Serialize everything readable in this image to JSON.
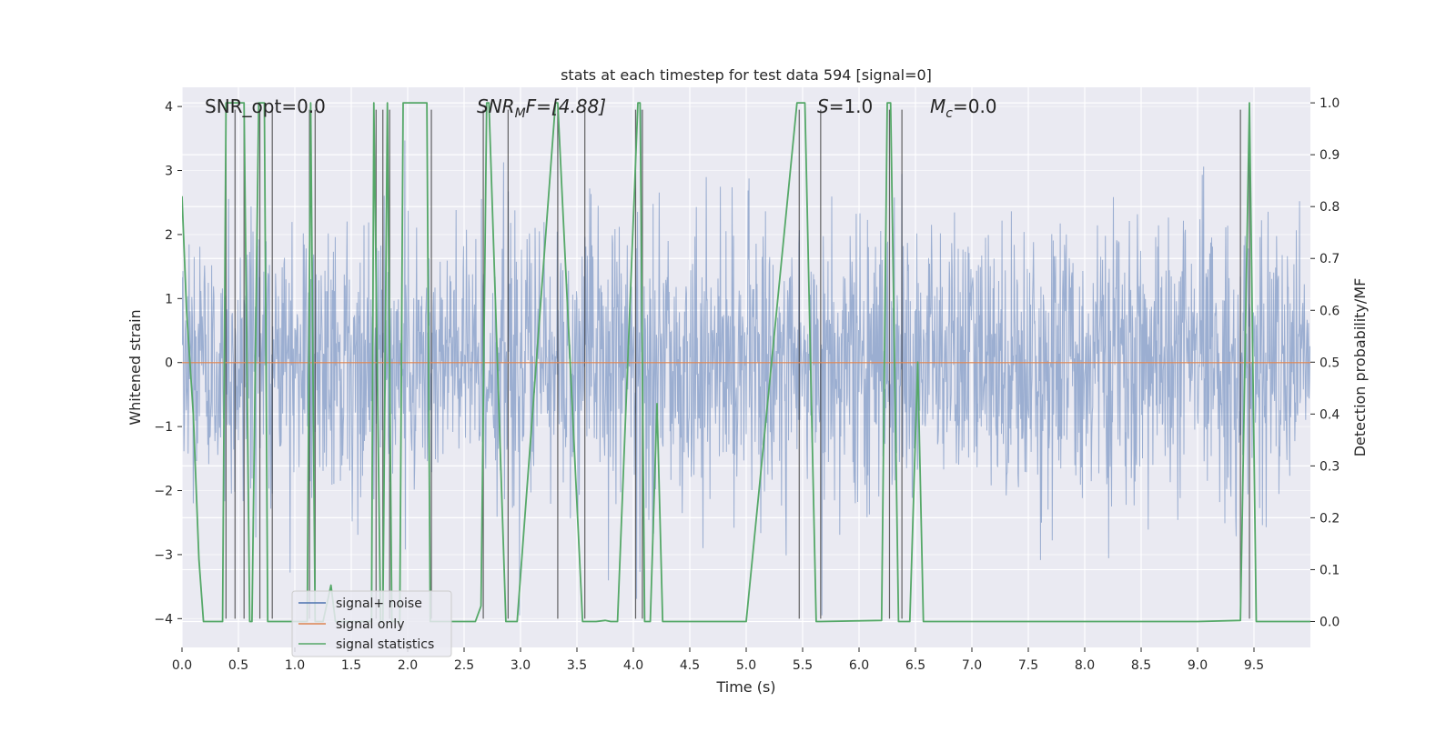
{
  "chart_data": {
    "type": "line",
    "title": "stats at each timestep for test data 594 [signal=0]",
    "xlabel": "Time (s)",
    "ylabel": "Whitened strain",
    "ylabel_right": "Detection probability/MF",
    "xlim": [
      0,
      10
    ],
    "ylim": [
      -4.45,
      4.3
    ],
    "ylim_right": [
      -0.05,
      1.03
    ],
    "x_ticks": [
      "0.0",
      "0.5",
      "1.0",
      "1.5",
      "2.0",
      "2.5",
      "3.0",
      "3.5",
      "4.0",
      "4.5",
      "5.0",
      "5.5",
      "6.0",
      "6.5",
      "7.0",
      "7.5",
      "8.0",
      "8.5",
      "9.0",
      "9.5"
    ],
    "y_ticks": [
      "4",
      "3",
      "2",
      "1",
      "0",
      "−1",
      "−2",
      "−3",
      "−4"
    ],
    "y_ticks_right": [
      "1.0",
      "0.9",
      "0.8",
      "0.7",
      "0.6",
      "0.5",
      "0.4",
      "0.3",
      "0.2",
      "0.1",
      "0.0"
    ],
    "grid": true,
    "legend_position": "lower-left",
    "annotations": {
      "snr_opt": "SNR_opt=0.0",
      "snr_mf_base": "SNR",
      "snr_mf_sub": "M",
      "snr_mf_rest": "F=[4.88]",
      "s_var": "S",
      "s_rest": "=1.0",
      "mc_var": "M",
      "mc_sub": "c",
      "mc_rest": "=0.0"
    },
    "series": [
      {
        "name": "signal+ noise",
        "color": "#4c72b0",
        "description_values": "dense noise, roughly ±2.4 envelope with spikes up to ±3.9"
      },
      {
        "name": "signal only",
        "color": "#dd8452",
        "values": [
          [
            0,
            0
          ],
          [
            10,
            0
          ]
        ]
      },
      {
        "name": "signal statistics",
        "color": "#55a868",
        "x": [
          0.0,
          0.04,
          0.1,
          0.15,
          0.19,
          0.36,
          0.39,
          0.42,
          0.55,
          0.6,
          0.62,
          0.68,
          0.73,
          0.76,
          0.8,
          0.85,
          0.98,
          1.11,
          1.14,
          1.18,
          1.21,
          1.25,
          1.32,
          1.36,
          1.4,
          1.68,
          1.7,
          1.76,
          1.78,
          1.82,
          1.86,
          1.93,
          1.96,
          2.0,
          2.17,
          2.2,
          2.6,
          2.65,
          2.7,
          2.72,
          2.87,
          2.9,
          2.97,
          3.31,
          3.33,
          3.55,
          3.6,
          3.67,
          3.75,
          3.8,
          3.86,
          4.04,
          4.06,
          4.1,
          4.15,
          4.21,
          4.26,
          4.3,
          4.5,
          5.0,
          5.45,
          5.47,
          5.52,
          5.62,
          5.66,
          6.2,
          6.25,
          6.28,
          6.35,
          6.4,
          6.45,
          6.52,
          6.57,
          6.62,
          7.0,
          8.0,
          9.0,
          9.38,
          9.46,
          9.52,
          10.0
        ],
        "values": [
          0.82,
          0.6,
          0.4,
          0.12,
          0.0,
          0.0,
          1.0,
          1.0,
          1.0,
          0.0,
          0.0,
          1.0,
          1.0,
          0.0,
          0.0,
          0.0,
          0.0,
          0.0,
          1.0,
          0.0,
          0.0,
          0.0,
          0.07,
          0.0,
          0.0,
          0.0,
          1.0,
          0.0,
          0.0,
          1.0,
          0.0,
          0.0,
          1.0,
          1.0,
          1.0,
          0.0,
          0.0,
          0.03,
          1.0,
          1.0,
          0.0,
          0.0,
          0.0,
          1.0,
          1.0,
          0.0,
          0.0,
          0.0,
          0.002,
          0.0,
          0.0,
          1.0,
          1.0,
          0.0,
          0.0,
          0.42,
          0.0,
          0.0,
          0.0,
          0.0,
          1.0,
          1.0,
          1.0,
          0.0,
          0.0,
          0.002,
          1.0,
          1.0,
          0.0,
          0.0,
          0.0,
          0.5,
          0.0,
          0.0,
          0.0,
          0.0,
          0.0,
          0.002,
          1.0,
          0.0,
          0.0
        ]
      }
    ],
    "vertical_lines_x": [
      0.39,
      0.47,
      0.55,
      0.69,
      0.8,
      1.13,
      1.18,
      1.72,
      1.78,
      1.84,
      2.21,
      2.67,
      2.89,
      3.33,
      3.57,
      4.02,
      4.08,
      5.47,
      5.66,
      6.27,
      6.38,
      9.38,
      9.46
    ]
  }
}
